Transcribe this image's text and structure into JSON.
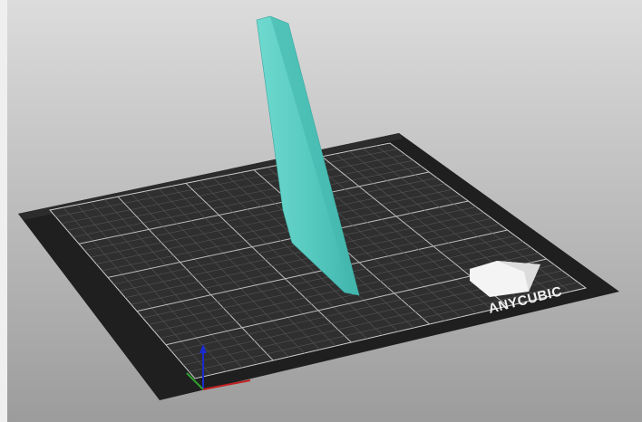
{
  "logo": {
    "text": "ANYCUBIC"
  }
}
